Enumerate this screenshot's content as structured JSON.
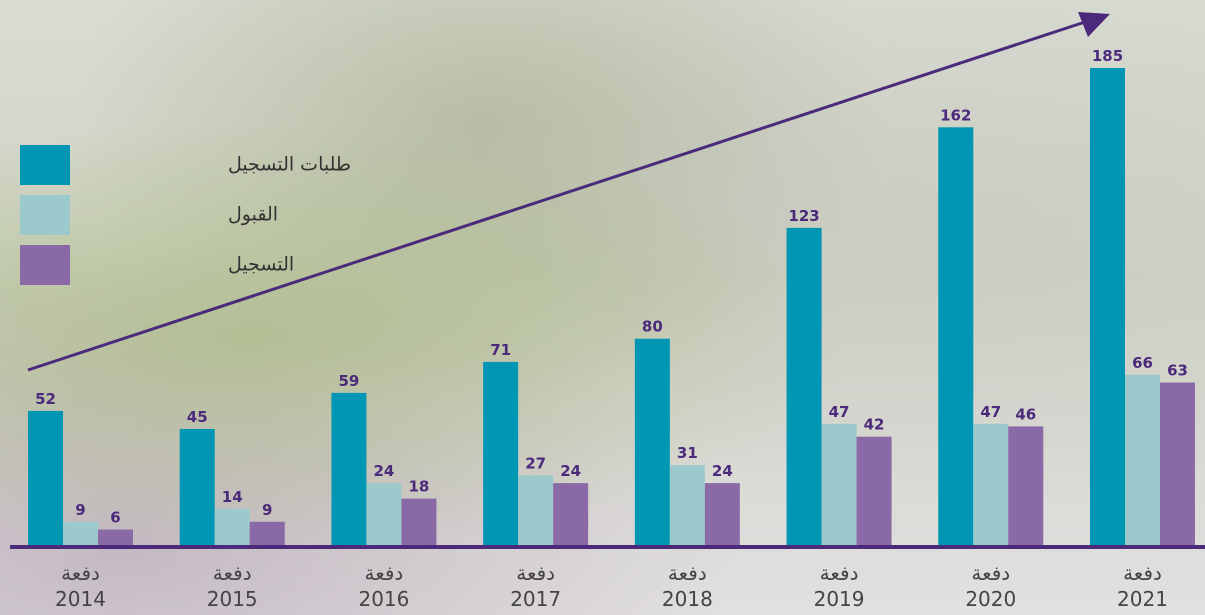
{
  "chart_data": {
    "type": "bar",
    "categories": [
      "دفعة\n2014",
      "دفعة\n2015",
      "دفعة\n2016",
      "دفعة\n2017",
      "دفعة\n2018",
      "دفعة\n2019",
      "دفعة\n2020",
      "دفعة\n2021"
    ],
    "series": [
      {
        "name": "طلبات التسجيل",
        "color": "#0096b4",
        "values": [
          52,
          45,
          59,
          71,
          80,
          123,
          162,
          185
        ]
      },
      {
        "name": "القبول",
        "color": "#9cc9cb",
        "values": [
          9,
          14,
          24,
          27,
          31,
          47,
          47,
          66
        ]
      },
      {
        "name": "التسجيل",
        "color": "#8a6aa6",
        "values": [
          6,
          9,
          18,
          24,
          24,
          42,
          46,
          63
        ]
      }
    ],
    "legend": "top-left"
  }
}
